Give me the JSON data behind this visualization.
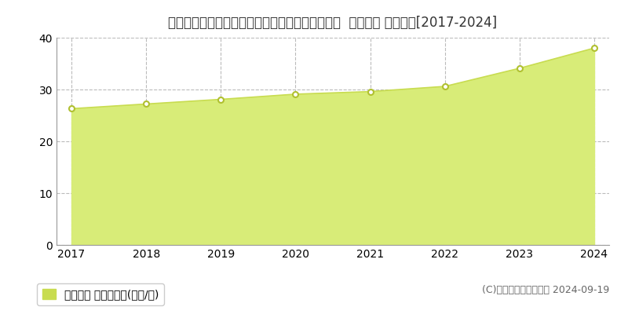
{
  "title": "北海道札幌市西区八軒１条東５丁目７２５番５外  公示地価 地価推移[2017-2024]",
  "years": [
    2017,
    2018,
    2019,
    2020,
    2021,
    2022,
    2023,
    2024
  ],
  "values": [
    26.3,
    27.2,
    28.1,
    29.1,
    29.6,
    30.6,
    34.1,
    38.0
  ],
  "ylim": [
    0,
    40
  ],
  "yticks": [
    0,
    10,
    20,
    30,
    40
  ],
  "line_color": "#c8dc50",
  "fill_color": "#d8ec78",
  "fill_alpha": 1.0,
  "marker_color": "#ffffff",
  "marker_edge_color": "#b0c030",
  "marker_size": 5,
  "grid_color": "#bbbbbb",
  "grid_alpha": 1.0,
  "bg_color": "#ffffff",
  "plot_bg_color": "#ffffff",
  "legend_label": "公示地価 平均坪単価(万円/坪)",
  "legend_color": "#c8dc50",
  "copyright_text": "(C)土地価格ドットコム 2024-09-19",
  "title_fontsize": 12,
  "tick_fontsize": 10,
  "legend_fontsize": 10,
  "copyright_fontsize": 9
}
